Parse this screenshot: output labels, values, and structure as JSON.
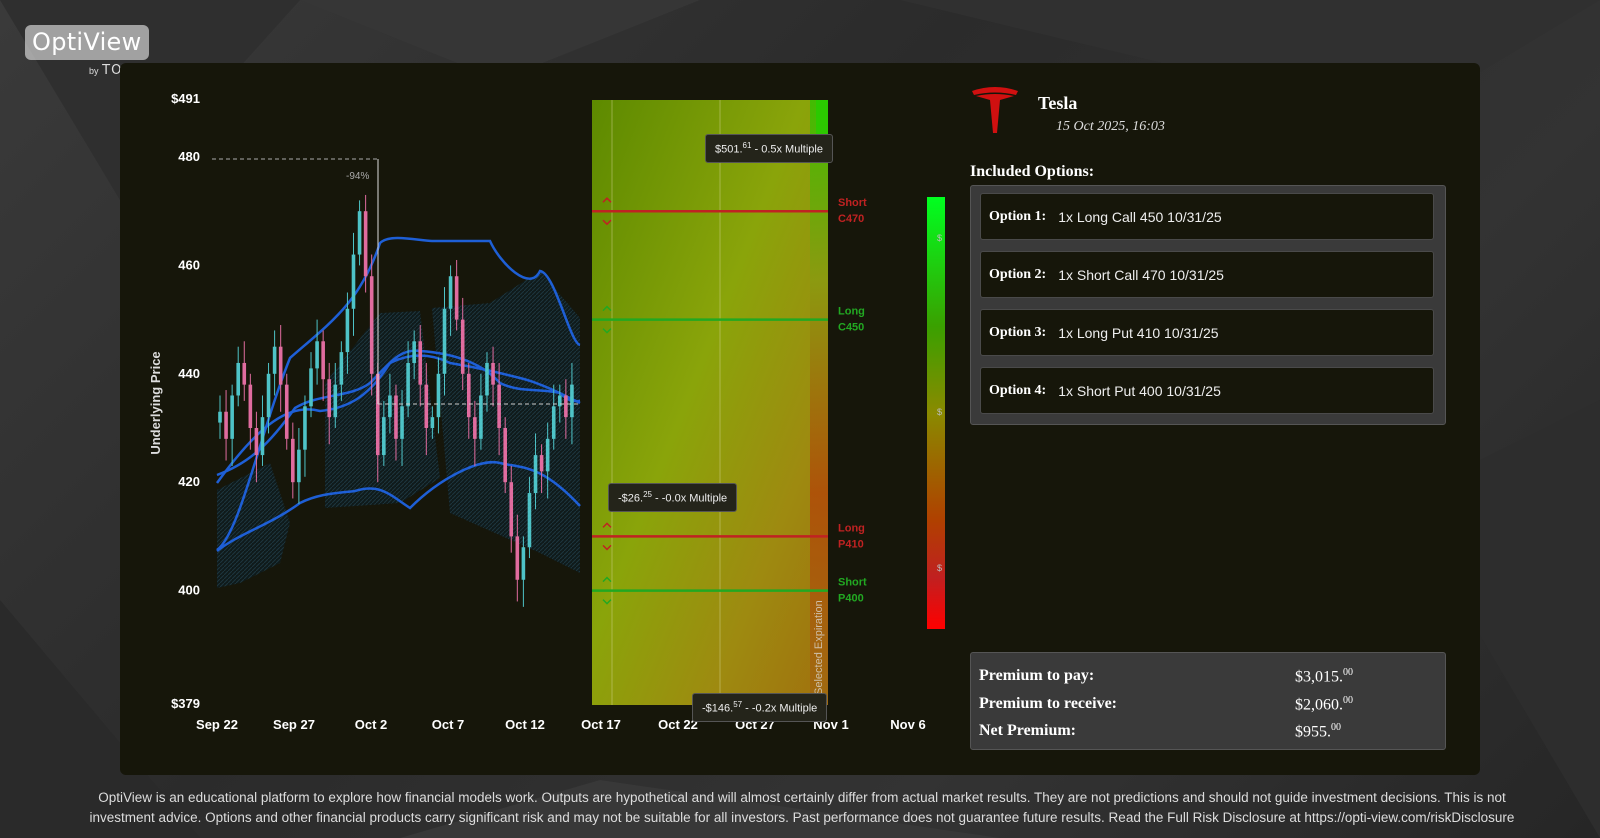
{
  "brand": {
    "name": "OptiView",
    "by": "by",
    "company": "TORR.O"
  },
  "colors": {
    "panel": "#16160a",
    "band": "#1e5fd6",
    "bull": "#4ec3c7",
    "bear": "#e06c9f",
    "profit": "#22e02a",
    "loss": "#e01010"
  },
  "chart": {
    "ylabel": "Underlying Price",
    "y_top_label": "$491",
    "y_bottom_label": "$379",
    "yticks": [
      "480",
      "460",
      "440",
      "420",
      "400"
    ],
    "xticks": [
      "Sep 22",
      "Sep 27",
      "Oct 2",
      "Oct 7",
      "Oct 12",
      "Oct 17",
      "Oct 22",
      "Oct 27",
      "Nov 1",
      "Nov 6"
    ],
    "drawdown_label": "-94%",
    "expiration_label": "Selected Expiration",
    "strikes": [
      {
        "line1": "Short",
        "line2": "C470",
        "price": 470,
        "color": "#c02222"
      },
      {
        "line1": "Long",
        "line2": "C450",
        "price": 450,
        "color": "#22a822"
      },
      {
        "line1": "Long",
        "line2": "P410",
        "price": 410,
        "color": "#c02222"
      },
      {
        "line1": "Short",
        "line2": "P400",
        "price": 400,
        "color": "#22a822"
      }
    ],
    "legend_partial": [
      "$",
      "$",
      "$"
    ]
  },
  "tooltips": {
    "top": {
      "main": "$501.",
      "cents": "61",
      "suffix": " - 0.5x Multiple"
    },
    "mid": {
      "main": "-$26.",
      "cents": "25",
      "suffix": " - -0.0x Multiple"
    },
    "bottom": {
      "main": "-$146.",
      "cents": "57",
      "suffix": " - -0.2x Multiple"
    }
  },
  "info": {
    "company": "Tesla",
    "timestamp": "15 Oct 2025, 16:03",
    "included_title": "Included Options:",
    "options": [
      {
        "label": "Option 1:",
        "desc": "1x Long Call 450 10/31/25"
      },
      {
        "label": "Option 2:",
        "desc": "1x Short Call 470 10/31/25"
      },
      {
        "label": "Option 3:",
        "desc": "1x Long Put 410 10/31/25"
      },
      {
        "label": "Option 4:",
        "desc": "1x Short Put 400 10/31/25"
      }
    ],
    "premium": [
      {
        "label": "Premium to pay:",
        "main": "$3,015.",
        "cents": "00"
      },
      {
        "label": "Premium to receive:",
        "main": "$2,060.",
        "cents": "00"
      },
      {
        "label": "Net Premium:",
        "main": "$955.",
        "cents": "00"
      }
    ]
  },
  "disclaimer": "OptiView is an educational platform to explore how financial models work. Outputs are hypothetical and will almost certainly differ from actual market results. They are not predictions and should not guide investment decisions. This is not investment advice. Options and other financial products carry significant risk and may not be suitable for all investors. Past performance does not guarantee future results. Read the Full Risk Disclosure at https://opti-view.com/riskDisclosure"
}
